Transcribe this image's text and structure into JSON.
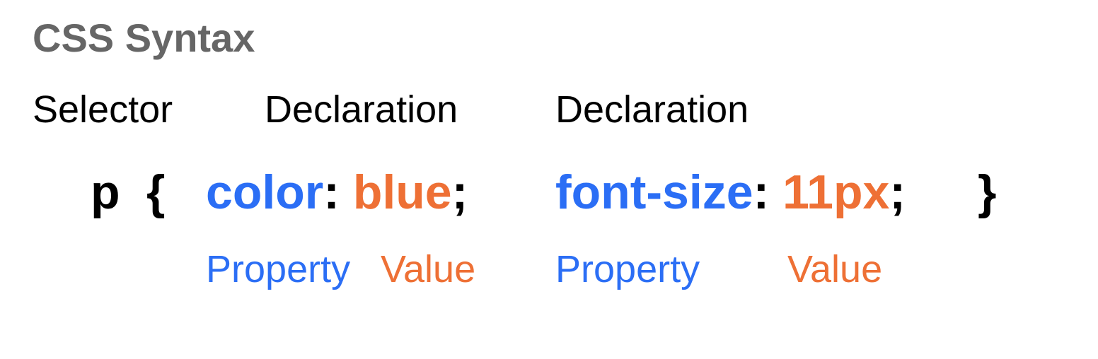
{
  "title": "CSS Syntax",
  "labels": {
    "selector": "Selector",
    "declaration_1": "Declaration",
    "declaration_2": "Declaration",
    "property_1": "Property",
    "value_1": "Value",
    "property_2": "Property",
    "value_2": "Value"
  },
  "code": {
    "selector": "p",
    "open_brace": "{",
    "property_1": "color",
    "colon_1": ":",
    "value_1": "blue",
    "semicolon_1": ";",
    "property_2": "font-size",
    "colon_2": ":",
    "value_2": "11px",
    "semicolon_2": ";",
    "close_brace": "}"
  },
  "colors": {
    "title": "#666666",
    "property": "#2b6ef5",
    "value": "#ee7035",
    "text": "#000000"
  }
}
